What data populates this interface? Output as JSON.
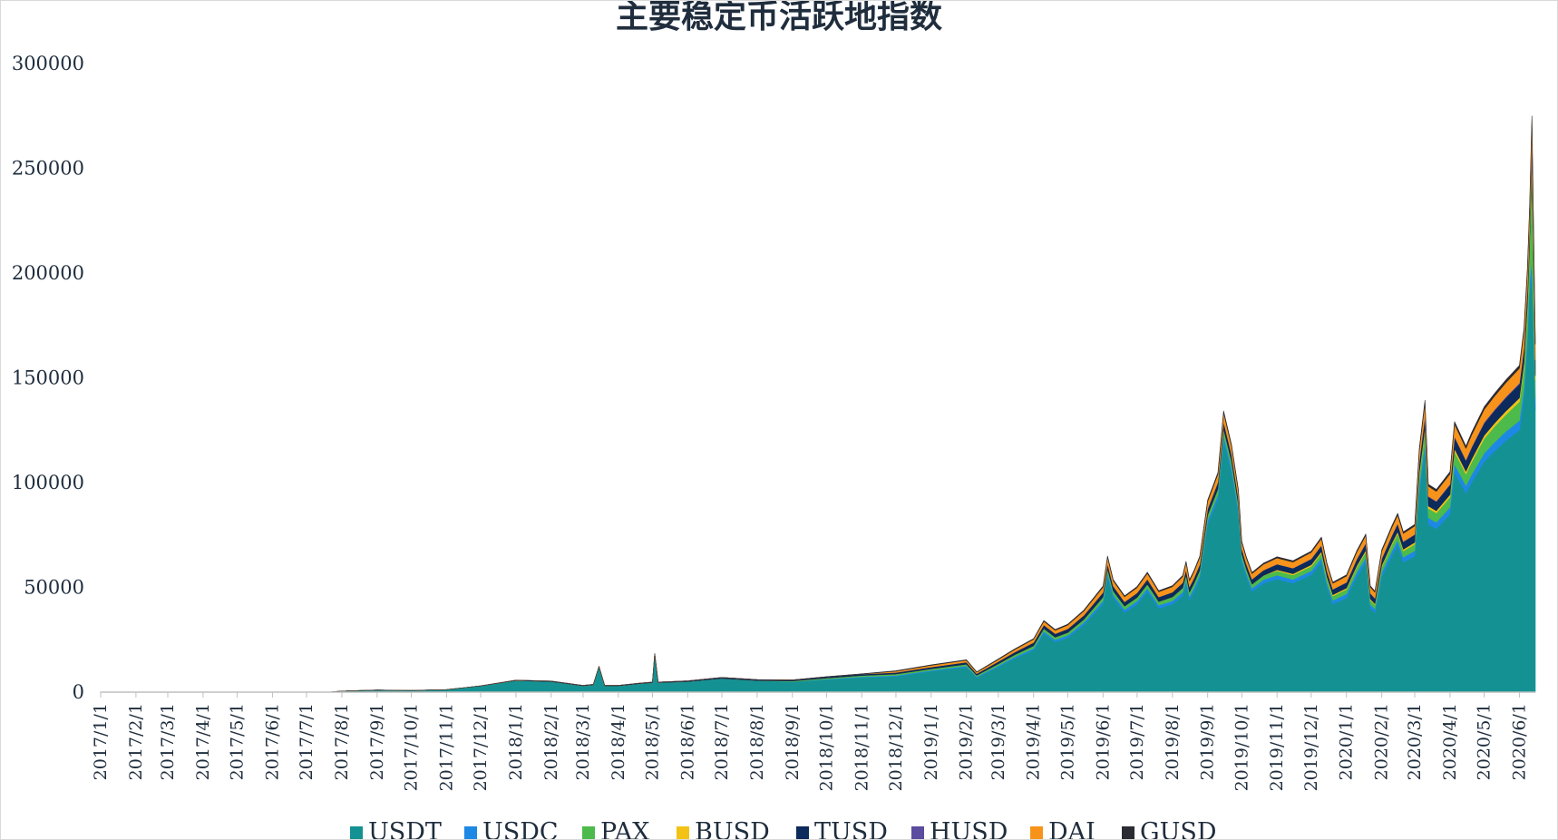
{
  "chart_data": {
    "type": "area",
    "title": "主要稳定币活跃地指数",
    "xlabel": "",
    "ylabel": "",
    "ylim": [
      0,
      300000
    ],
    "y_ticks": [
      "0",
      "50000",
      "100000",
      "150000",
      "200000",
      "250000",
      "300000"
    ],
    "x_range": [
      "2017-01-01",
      "2020-06-15"
    ],
    "x_tick_labels": [
      "2017/1/1",
      "2017/2/1",
      "2017/3/1",
      "2017/4/1",
      "2017/5/1",
      "2017/6/1",
      "2017/7/1",
      "2017/8/1",
      "2017/9/1",
      "2017/10/1",
      "2017/11/1",
      "2017/12/1",
      "2018/1/1",
      "2018/2/1",
      "2018/3/1",
      "2018/4/1",
      "2018/5/1",
      "2018/6/1",
      "2018/7/1",
      "2018/8/1",
      "2018/9/1",
      "2018/10/1",
      "2018/11/1",
      "2018/12/1",
      "2019/1/1",
      "2019/2/1",
      "2019/3/1",
      "2019/4/1",
      "2019/5/1",
      "2019/6/1",
      "2019/7/1",
      "2019/8/1",
      "2019/9/1",
      "2019/10/1",
      "2019/11/1",
      "2019/12/1",
      "2020/1/1",
      "2020/2/1",
      "2020/3/1",
      "2020/4/1",
      "2020/5/1",
      "2020/6/1"
    ],
    "grid": false,
    "stacked": true,
    "legend_position": "bottom",
    "dates": [
      "2017-01-01",
      "2017-07-20",
      "2017-08-01",
      "2017-09-01",
      "2017-10-01",
      "2017-11-01",
      "2017-12-01",
      "2018-01-01",
      "2018-02-01",
      "2018-03-01",
      "2018-03-10",
      "2018-03-15",
      "2018-03-20",
      "2018-04-01",
      "2018-04-20",
      "2018-05-01",
      "2018-05-03",
      "2018-05-06",
      "2018-06-01",
      "2018-07-01",
      "2018-08-01",
      "2018-09-01",
      "2018-10-01",
      "2018-11-01",
      "2018-12-01",
      "2019-01-01",
      "2019-02-01",
      "2019-02-10",
      "2019-03-01",
      "2019-03-15",
      "2019-04-01",
      "2019-04-10",
      "2019-04-20",
      "2019-05-01",
      "2019-05-15",
      "2019-06-01",
      "2019-06-05",
      "2019-06-10",
      "2019-06-20",
      "2019-07-01",
      "2019-07-10",
      "2019-07-20",
      "2019-08-01",
      "2019-08-10",
      "2019-08-13",
      "2019-08-16",
      "2019-08-20",
      "2019-08-25",
      "2019-09-01",
      "2019-09-10",
      "2019-09-15",
      "2019-09-22",
      "2019-09-28",
      "2019-10-01",
      "2019-10-05",
      "2019-10-10",
      "2019-10-20",
      "2019-11-01",
      "2019-11-15",
      "2019-12-01",
      "2019-12-10",
      "2019-12-15",
      "2019-12-20",
      "2020-01-01",
      "2020-01-10",
      "2020-01-18",
      "2020-01-22",
      "2020-01-26",
      "2020-02-01",
      "2020-02-10",
      "2020-02-15",
      "2020-02-20",
      "2020-03-01",
      "2020-03-05",
      "2020-03-10",
      "2020-03-13",
      "2020-03-20",
      "2020-04-01",
      "2020-04-05",
      "2020-04-15",
      "2020-04-20",
      "2020-05-01",
      "2020-05-10",
      "2020-05-20",
      "2020-06-01",
      "2020-06-05",
      "2020-06-08",
      "2020-06-10",
      "2020-06-12",
      "2020-06-15"
    ],
    "series": [
      {
        "name": "USDT",
        "color": "#149293",
        "values": [
          0,
          0,
          500,
          1000,
          800,
          1200,
          3000,
          5500,
          5000,
          3000,
          3500,
          12000,
          3000,
          3000,
          4000,
          4500,
          18000,
          4500,
          5000,
          6500,
          5500,
          5000,
          6000,
          7000,
          7500,
          10000,
          12000,
          7000,
          12000,
          16000,
          20000,
          28000,
          24000,
          26000,
          32000,
          42000,
          55000,
          45000,
          38000,
          42000,
          48000,
          40000,
          42000,
          46000,
          52000,
          44000,
          48000,
          54000,
          80000,
          92000,
          120000,
          105000,
          85000,
          62000,
          55000,
          48000,
          52000,
          54000,
          52000,
          56000,
          62000,
          50000,
          42000,
          45000,
          55000,
          62000,
          40000,
          38000,
          55000,
          65000,
          70000,
          62000,
          65000,
          95000,
          115000,
          80000,
          78000,
          85000,
          105000,
          95000,
          100000,
          110000,
          115000,
          120000,
          125000,
          140000,
          165000,
          190000,
          200000,
          135000
        ]
      },
      {
        "name": "USDC",
        "color": "#1e88e5",
        "values": [
          0,
          0,
          0,
          0,
          0,
          0,
          0,
          0,
          0,
          0,
          0,
          0,
          0,
          0,
          0,
          0,
          0,
          0,
          0,
          0,
          0,
          0,
          200,
          300,
          400,
          400,
          500,
          400,
          600,
          700,
          900,
          1000,
          1000,
          1100,
          1200,
          1500,
          1800,
          1500,
          1400,
          1500,
          1600,
          1500,
          1600,
          1700,
          1800,
          1700,
          1800,
          1900,
          2000,
          2200,
          2500,
          2300,
          2100,
          1800,
          1700,
          1600,
          1700,
          1800,
          1800,
          1900,
          2000,
          1900,
          1800,
          1900,
          2100,
          2200,
          1800,
          1700,
          2200,
          2400,
          2500,
          2400,
          2500,
          3500,
          4000,
          3200,
          3100,
          3300,
          3800,
          3600,
          3800,
          4000,
          4200,
          4400,
          4600,
          5000,
          5500,
          6000,
          6500,
          5000
        ]
      },
      {
        "name": "PAX",
        "color": "#4cbb4b",
        "values": [
          0,
          0,
          0,
          0,
          0,
          0,
          0,
          0,
          0,
          0,
          0,
          0,
          0,
          0,
          0,
          0,
          0,
          0,
          0,
          0,
          0,
          300,
          500,
          600,
          700,
          700,
          800,
          600,
          900,
          1000,
          1200,
          1300,
          1200,
          1300,
          1400,
          1800,
          2000,
          1800,
          1600,
          1700,
          1900,
          1700,
          1800,
          2000,
          2100,
          2000,
          2100,
          2200,
          2500,
          2700,
          3000,
          2800,
          2500,
          2100,
          2000,
          1900,
          2000,
          2100,
          2100,
          2200,
          2300,
          2200,
          2100,
          2200,
          2500,
          2700,
          2100,
          2000,
          2600,
          3000,
          3200,
          3000,
          3100,
          5000,
          6000,
          4500,
          4400,
          4800,
          6000,
          5500,
          6000,
          7000,
          7500,
          8000,
          9000,
          10000,
          12000,
          15000,
          45000,
          9000
        ]
      },
      {
        "name": "BUSD",
        "color": "#f2c215",
        "values": [
          0,
          0,
          0,
          0,
          0,
          0,
          0,
          0,
          0,
          0,
          0,
          0,
          0,
          0,
          0,
          0,
          0,
          0,
          0,
          0,
          0,
          0,
          0,
          0,
          0,
          0,
          0,
          0,
          0,
          0,
          0,
          0,
          0,
          0,
          0,
          0,
          0,
          0,
          0,
          0,
          0,
          0,
          0,
          0,
          0,
          0,
          0,
          0,
          0,
          0,
          0,
          0,
          0,
          0,
          0,
          0,
          0,
          500,
          600,
          700,
          800,
          700,
          600,
          600,
          700,
          800,
          600,
          500,
          700,
          800,
          900,
          800,
          900,
          1200,
          1400,
          1100,
          1100,
          1200,
          1400,
          1300,
          1400,
          1500,
          1600,
          1700,
          1800,
          2000,
          2200,
          2500,
          3000,
          2000
        ]
      },
      {
        "name": "TUSD",
        "color": "#0c2a5b",
        "values": [
          0,
          0,
          0,
          0,
          0,
          0,
          0,
          200,
          300,
          200,
          200,
          300,
          200,
          200,
          300,
          300,
          400,
          300,
          400,
          500,
          500,
          500,
          600,
          700,
          800,
          900,
          1000,
          800,
          1100,
          1300,
          1600,
          1800,
          1700,
          1800,
          2000,
          2300,
          2600,
          2300,
          2100,
          2200,
          2400,
          2200,
          2300,
          2500,
          2700,
          2500,
          2600,
          2800,
          3000,
          3300,
          3700,
          3400,
          3000,
          2600,
          2500,
          2400,
          2500,
          2600,
          2600,
          2700,
          2900,
          2700,
          2500,
          2600,
          3000,
          3300,
          2600,
          2500,
          3100,
          3500,
          3700,
          3500,
          3600,
          5000,
          5500,
          4400,
          4300,
          4600,
          5500,
          5100,
          5400,
          5800,
          6000,
          6300,
          6600,
          7000,
          7500,
          8000,
          9000,
          7000
        ]
      },
      {
        "name": "HUSD",
        "color": "#5b4c9f",
        "values": [
          0,
          0,
          0,
          0,
          0,
          0,
          0,
          0,
          0,
          0,
          0,
          0,
          0,
          0,
          0,
          0,
          0,
          0,
          0,
          0,
          0,
          0,
          0,
          0,
          0,
          0,
          0,
          0,
          0,
          0,
          0,
          0,
          0,
          0,
          0,
          0,
          0,
          0,
          0,
          0,
          0,
          0,
          0,
          0,
          0,
          0,
          0,
          0,
          0,
          0,
          0,
          0,
          0,
          0,
          0,
          0,
          0,
          100,
          100,
          150,
          150,
          150,
          150,
          150,
          200,
          200,
          150,
          150,
          200,
          250,
          250,
          250,
          250,
          350,
          400,
          300,
          300,
          350,
          400,
          400,
          400,
          450,
          450,
          500,
          500,
          550,
          600,
          650,
          700,
          600
        ]
      },
      {
        "name": "DAI",
        "color": "#f7931a",
        "values": [
          0,
          0,
          0,
          0,
          0,
          0,
          0,
          0,
          0,
          0,
          0,
          0,
          0,
          0,
          0,
          0,
          0,
          0,
          0,
          0,
          0,
          0,
          0,
          0,
          600,
          800,
          900,
          700,
          1000,
          1200,
          1500,
          1700,
          1600,
          1800,
          2000,
          2500,
          3000,
          2600,
          2400,
          2500,
          2800,
          2500,
          2600,
          2900,
          3200,
          2900,
          3000,
          3300,
          3500,
          3800,
          4200,
          3800,
          3400,
          2900,
          2800,
          2700,
          2800,
          2900,
          2900,
          3000,
          3200,
          3000,
          2800,
          2900,
          3300,
          3600,
          2900,
          2800,
          3400,
          3800,
          4000,
          3800,
          3900,
          5200,
          5800,
          4700,
          4600,
          4900,
          5800,
          5400,
          5700,
          6100,
          6400,
          6700,
          7000,
          7500,
          8000,
          8500,
          9000,
          7500
        ]
      },
      {
        "name": "GUSD",
        "color": "#2b2b33",
        "values": [
          0,
          0,
          0,
          0,
          0,
          0,
          0,
          0,
          0,
          0,
          0,
          0,
          0,
          0,
          0,
          0,
          0,
          0,
          0,
          0,
          0,
          0,
          100,
          150,
          200,
          200,
          250,
          200,
          250,
          300,
          350,
          400,
          400,
          400,
          450,
          500,
          550,
          500,
          450,
          500,
          550,
          500,
          500,
          550,
          600,
          550,
          550,
          600,
          700,
          750,
          800,
          750,
          700,
          600,
          550,
          550,
          550,
          600,
          600,
          600,
          650,
          600,
          550,
          600,
          650,
          700,
          600,
          550,
          700,
          750,
          800,
          750,
          800,
          1100,
          1200,
          1000,
          950,
          1000,
          1200,
          1100,
          1200,
          1250,
          1300,
          1350,
          1400,
          1500,
          1600,
          1700,
          1800,
          1500
        ]
      }
    ]
  }
}
